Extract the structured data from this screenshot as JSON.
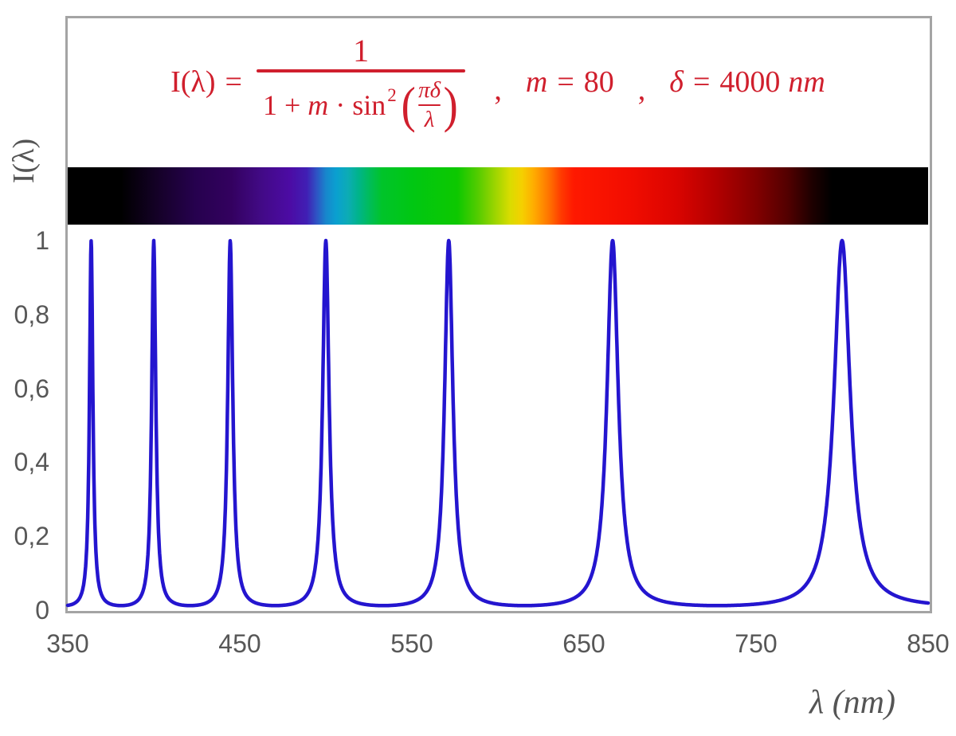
{
  "figure": {
    "ylabel": "I(λ)",
    "xlabel": "λ  (nm)"
  },
  "formula": {
    "color": "#d01f2d",
    "lhs": "I(λ)",
    "eq": "=",
    "numerator": "1",
    "den_pre1": "1 + ",
    "den_m": "m",
    "den_pre2": " · sin",
    "den_sup": "2",
    "paren_open": "(",
    "paren_close": ")",
    "inner_num": "πδ",
    "inner_den": "λ",
    "comma1": ",",
    "m_name": "m",
    "m_eq": "=",
    "m_val": "80",
    "comma2": ",",
    "d_name": "δ",
    "d_eq": "=",
    "d_val": "4000",
    "d_unit": "nm"
  },
  "chart_data": {
    "type": "line",
    "title": "I(λ) = 1 / (1 + m·sin²(πδ/λ)) ,  m = 80 ,  δ = 4000 nm",
    "xlabel": "λ (nm)",
    "ylabel": "I(λ)",
    "xlim": [
      350,
      850
    ],
    "ylim": [
      0,
      1
    ],
    "grid": false,
    "legend": "none",
    "function": "I(lambda) = 1 / (1 + m * sin(pi*delta/lambda)^2)",
    "params": {
      "m": 80,
      "delta_nm": 4000
    },
    "sample_step_nm": 0.2,
    "curve_color": "#2415cf",
    "peaks_nm": [
      363.64,
      400.0,
      444.44,
      500.0,
      571.43,
      666.67,
      800.0
    ],
    "peak_value": 1.0,
    "min_value": 0.0123,
    "x_tick_values": [
      350,
      450,
      550,
      650,
      750,
      850
    ],
    "x_tick_labels": [
      "350",
      "450",
      "550",
      "650",
      "750",
      "850"
    ],
    "y_tick_values": [
      1,
      0.8,
      0.6,
      0.4,
      0.2,
      0
    ],
    "y_tick_labels": [
      "1",
      "0,8",
      "0,6",
      "0,4",
      "0,2",
      "0"
    ],
    "spectrum_bar": {
      "description": "visible-light spectrum strip, black below 380 nm and above 780 nm",
      "stops": [
        {
          "pos": 0.0,
          "color": "#000000"
        },
        {
          "pos": 0.062,
          "color": "#000000"
        },
        {
          "pos": 0.105,
          "color": "#150128"
        },
        {
          "pos": 0.148,
          "color": "#26014e"
        },
        {
          "pos": 0.19,
          "color": "#33015f"
        },
        {
          "pos": 0.225,
          "color": "#420a86"
        },
        {
          "pos": 0.258,
          "color": "#4c0ba4"
        },
        {
          "pos": 0.278,
          "color": "#401fb4"
        },
        {
          "pos": 0.289,
          "color": "#2f52c4"
        },
        {
          "pos": 0.3,
          "color": "#1886cc"
        },
        {
          "pos": 0.312,
          "color": "#0aa0d0"
        },
        {
          "pos": 0.326,
          "color": "#0cacb4"
        },
        {
          "pos": 0.338,
          "color": "#00b48a"
        },
        {
          "pos": 0.35,
          "color": "#00bc5c"
        },
        {
          "pos": 0.365,
          "color": "#00c42a"
        },
        {
          "pos": 0.4,
          "color": "#00c713"
        },
        {
          "pos": 0.453,
          "color": "#0dc800"
        },
        {
          "pos": 0.477,
          "color": "#55cc00"
        },
        {
          "pos": 0.495,
          "color": "#96d400"
        },
        {
          "pos": 0.514,
          "color": "#d9dc00"
        },
        {
          "pos": 0.528,
          "color": "#f5d000"
        },
        {
          "pos": 0.542,
          "color": "#ffab00"
        },
        {
          "pos": 0.56,
          "color": "#ff7100"
        },
        {
          "pos": 0.574,
          "color": "#ff3900"
        },
        {
          "pos": 0.588,
          "color": "#ff1900"
        },
        {
          "pos": 0.652,
          "color": "#f20d00"
        },
        {
          "pos": 0.708,
          "color": "#da0400"
        },
        {
          "pos": 0.754,
          "color": "#b20000"
        },
        {
          "pos": 0.8,
          "color": "#820000"
        },
        {
          "pos": 0.837,
          "color": "#520000"
        },
        {
          "pos": 0.865,
          "color": "#1e0000"
        },
        {
          "pos": 0.888,
          "color": "#000000"
        },
        {
          "pos": 1.0,
          "color": "#000000"
        }
      ]
    }
  }
}
